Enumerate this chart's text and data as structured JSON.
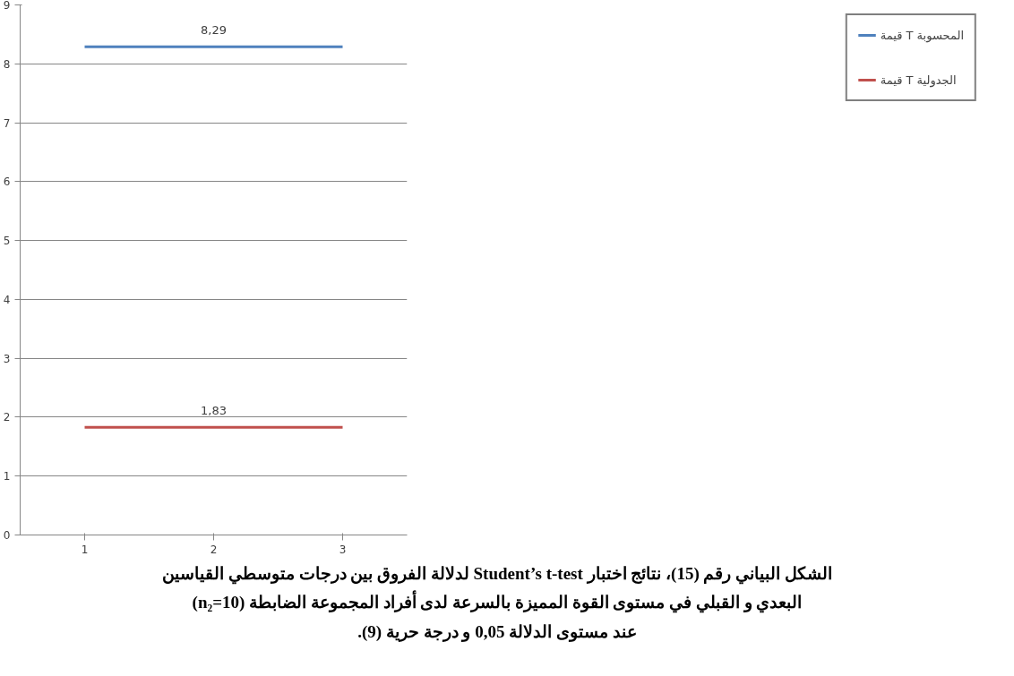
{
  "chart_data": {
    "type": "line",
    "categories": [
      "1",
      "2",
      "3"
    ],
    "series": [
      {
        "name": "قيمة T المحسوبة",
        "color": "#4f81bd",
        "values": [
          8.29,
          8.29,
          8.29
        ],
        "value_labels": [
          null,
          "8,29",
          null
        ]
      },
      {
        "name": "قيمة T الجدولية",
        "color": "#c0504d",
        "values": [
          1.83,
          1.83,
          1.83
        ],
        "value_labels": [
          null,
          "1,83",
          null
        ]
      }
    ],
    "ylim": [
      0,
      9
    ],
    "yticks": [
      0,
      1,
      2,
      3,
      4,
      5,
      6,
      7,
      8,
      9
    ],
    "grid": "y",
    "legend": "right",
    "marker": "none",
    "line_style": "solid",
    "annotations": [
      "الشكل البياني رقم (15)، نتائج اختبار Student’s t-test لدلالة الفروق بين درجات متوسطي القياسين\nالبعدي و القبلي في مستوى القوة المميزة بالسرعة لدى أفراد المجموعة الضابطة (n₂=10)\nعند مستوى الدلالة 0,05 و درجة حرية (9)."
    ]
  }
}
